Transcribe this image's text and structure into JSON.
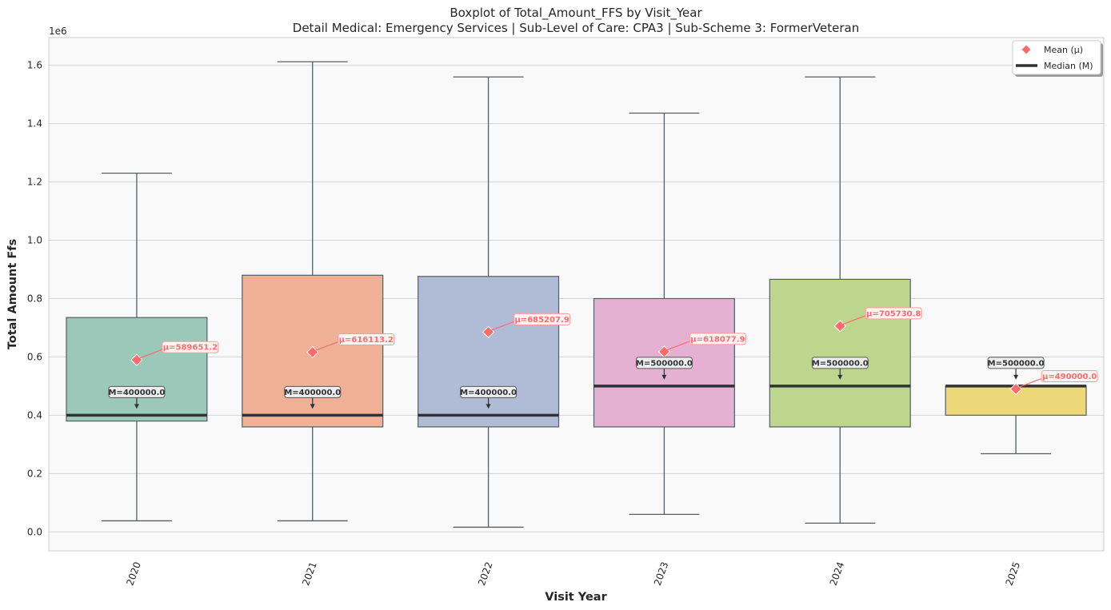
{
  "chart_data": {
    "type": "box",
    "title": "Boxplot of Total_Amount_FFS by Visit_Year",
    "subtitle": "Detail Medical: Emergency Services | Sub-Level of Care: CPA3 | Sub-Scheme 3: FormerVeteran",
    "xlabel": "Visit Year",
    "ylabel": "Total Amount Ffs",
    "offset_text": "1e6",
    "ylim": [
      -0.065,
      1.695
    ],
    "yticks": [
      0.0,
      0.2,
      0.4,
      0.6,
      0.8,
      1.0,
      1.2,
      1.4,
      1.6
    ],
    "ytick_labels": [
      "0.0",
      "0.2",
      "0.4",
      "0.6",
      "0.8",
      "1.0",
      "1.2",
      "1.4",
      "1.6"
    ],
    "grid": "horizontal",
    "legend_position": "top-right",
    "legend": [
      {
        "label": "Mean (μ)",
        "marker": "diamond",
        "color": "#ff6b6b"
      },
      {
        "label": "Median (M)",
        "marker": "line",
        "color": "#2f3337"
      }
    ],
    "categories": [
      "2020",
      "2021",
      "2022",
      "2023",
      "2024",
      "2025"
    ],
    "boxes": [
      {
        "x": "2020",
        "whisker_low": 0.038,
        "q1": 0.38,
        "median": 0.4,
        "q3": 0.735,
        "whisker_high": 1.23,
        "mean": 0.5896512,
        "color": "#9bc8b8",
        "mean_label": "μ=589651.2",
        "median_label": "M=400000.0"
      },
      {
        "x": "2021",
        "whisker_low": 0.038,
        "q1": 0.36,
        "median": 0.4,
        "q3": 0.88,
        "whisker_high": 1.612,
        "mean": 0.6161132,
        "color": "#efb096",
        "mean_label": "μ=616113.2",
        "median_label": "M=400000.0"
      },
      {
        "x": "2022",
        "whisker_low": 0.016,
        "q1": 0.36,
        "median": 0.4,
        "q3": 0.876,
        "whisker_high": 1.56,
        "mean": 0.6852079,
        "color": "#b0bbd6",
        "mean_label": "μ=685207.9",
        "median_label": "M=400000.0"
      },
      {
        "x": "2023",
        "whisker_low": 0.06,
        "q1": 0.36,
        "median": 0.5,
        "q3": 0.8,
        "whisker_high": 1.436,
        "mean": 0.6180779,
        "color": "#e5b1d2",
        "mean_label": "μ=618077.9",
        "median_label": "M=500000.0"
      },
      {
        "x": "2024",
        "whisker_low": 0.03,
        "q1": 0.36,
        "median": 0.5,
        "q3": 0.866,
        "whisker_high": 1.56,
        "mean": 0.7057308,
        "color": "#bcd78d",
        "mean_label": "μ=705730.8",
        "median_label": "M=500000.0"
      },
      {
        "x": "2025",
        "whisker_low": 0.268,
        "q1": 0.4,
        "median": 0.5,
        "q3": 0.5,
        "whisker_high": 0.5,
        "mean": 0.49,
        "color": "#ecd779",
        "mean_label": "μ=490000.0",
        "median_label": "M=500000.0"
      }
    ]
  }
}
